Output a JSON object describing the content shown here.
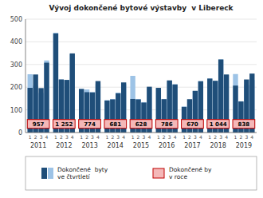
{
  "chart_data": {
    "type": "bar",
    "title": "Vývoj dokončené bytové výstavby  v Libereck",
    "categories": [
      "2011",
      "2012",
      "2013",
      "2014",
      "2015",
      "2016",
      "2017",
      "2018",
      "2019"
    ],
    "quarters": [
      "1",
      "2",
      "3",
      "4"
    ],
    "series": [
      {
        "name": "Dokončené  byty\nve čtvrtletí",
        "color": "#1f4e79",
        "values": [
          [
            197,
            256,
            196,
            308
          ],
          [
            437,
            234,
            232,
            349
          ],
          [
            192,
            178,
            177,
            227
          ],
          [
            141,
            146,
            173,
            221
          ],
          [
            148,
            146,
            132,
            202
          ],
          [
            197,
            147,
            230,
            212
          ],
          [
            113,
            147,
            184,
            226
          ],
          [
            238,
            228,
            322,
            256
          ],
          [
            207,
            137,
            234,
            260
          ]
        ]
      },
      {
        "color": "#9dc3e6",
        "values": [
          [
            257,
            207,
            175,
            318
          ],
          [
            440,
            234,
            232,
            346
          ],
          [
            193,
            190,
            178,
            213
          ],
          [
            143,
            148,
            176,
            214
          ],
          [
            250,
            148,
            134,
            196
          ],
          [
            197,
            148,
            228,
            213
          ],
          [
            115,
            145,
            183,
            227
          ],
          [
            238,
            229,
            323,
            254
          ],
          [
            258,
            138,
            210,
            232
          ]
        ]
      }
    ],
    "annual_totals": {
      "name": "Dokončené by\nv roce",
      "color": "#f4b8b8",
      "edge_color": "#c00000",
      "values": [
        957,
        1252,
        774,
        681,
        628,
        786,
        670,
        1044,
        838
      ],
      "value_labels": [
        "957",
        "1 252",
        "774",
        "681",
        "628",
        "786",
        "670",
        "1 044",
        "838"
      ]
    },
    "ylim": [
      0,
      500
    ],
    "yticks": [
      0,
      100,
      200,
      300,
      400,
      500
    ],
    "grid": true
  }
}
